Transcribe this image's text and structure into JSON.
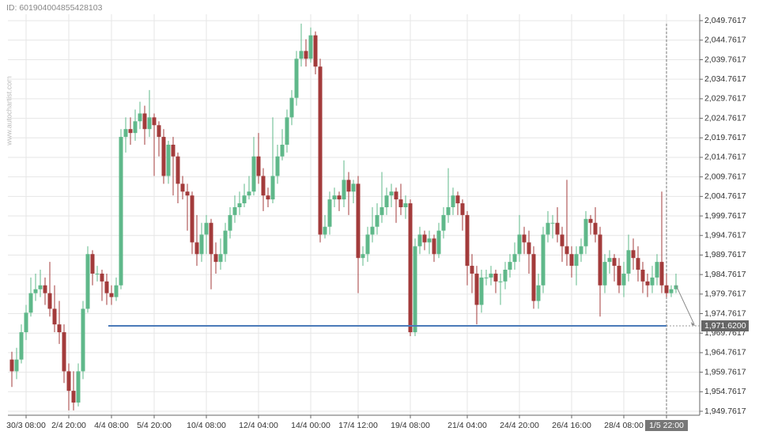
{
  "chart_data": {
    "type": "candlestick",
    "id_text": "ID: 601904004855428103",
    "watermark": "www.autochartist.com",
    "up_color": "#5fb88a",
    "down_color": "#a33b3b",
    "level_color": "#4a7ab8",
    "grid": true,
    "level": {
      "value": 1971.62,
      "label": "1,971.6200"
    },
    "ylim": [
      1948.75,
      2051.4
    ],
    "yticks": [
      {
        "value": 1949.7617,
        "label": "1,949.7617"
      },
      {
        "value": 1954.7617,
        "label": "1,954.7617"
      },
      {
        "value": 1959.7617,
        "label": "1,959.7617"
      },
      {
        "value": 1964.7617,
        "label": "1,964.7617"
      },
      {
        "value": 1969.7617,
        "label": "1,969.7617"
      },
      {
        "value": 1974.7617,
        "label": "1,974.7617"
      },
      {
        "value": 1979.7617,
        "label": "1,979.7617"
      },
      {
        "value": 1984.7617,
        "label": "1,984.7617"
      },
      {
        "value": 1989.7617,
        "label": "1,989.7617"
      },
      {
        "value": 1994.7617,
        "label": "1,994.7617"
      },
      {
        "value": 1999.7617,
        "label": "1,999.7617"
      },
      {
        "value": 2004.7617,
        "label": "2,004.7617"
      },
      {
        "value": 2009.7617,
        "label": "2,009.7617"
      },
      {
        "value": 2014.7617,
        "label": "2,014.7617"
      },
      {
        "value": 2019.7617,
        "label": "2,019.7617"
      },
      {
        "value": 2024.7617,
        "label": "2,024.7617"
      },
      {
        "value": 2029.7617,
        "label": "2,029.7617"
      },
      {
        "value": 2034.7617,
        "label": "2,034.7617"
      },
      {
        "value": 2039.7617,
        "label": "2,039.7617"
      },
      {
        "value": 2044.7617,
        "label": "2,044.7617"
      },
      {
        "value": 2049.7617,
        "label": "2,049.7617"
      }
    ],
    "categories": [
      null,
      null,
      null,
      "30/3 08:00",
      null,
      null,
      null,
      null,
      null,
      null,
      null,
      null,
      "2/4 20:00",
      null,
      null,
      null,
      null,
      null,
      null,
      null,
      null,
      "4/4 08:00",
      null,
      null,
      null,
      null,
      null,
      null,
      null,
      null,
      "5/4 20:00",
      null,
      null,
      null,
      null,
      null,
      null,
      null,
      null,
      null,
      null,
      "10/4 08:00",
      null,
      null,
      null,
      null,
      null,
      null,
      null,
      null,
      null,
      null,
      "12/4 04:00",
      null,
      null,
      null,
      null,
      null,
      null,
      null,
      null,
      null,
      null,
      "14/4 00:00",
      null,
      null,
      null,
      null,
      null,
      null,
      null,
      null,
      null,
      "17/4 12:00",
      null,
      null,
      null,
      null,
      null,
      null,
      null,
      null,
      null,
      null,
      "19/4 08:00",
      null,
      null,
      null,
      null,
      null,
      null,
      null,
      null,
      null,
      null,
      null,
      "21/4 04:00",
      null,
      null,
      null,
      null,
      null,
      null,
      null,
      null,
      null,
      null,
      "24/4 20:00",
      null,
      null,
      null,
      null,
      null,
      null,
      null,
      null,
      null,
      null,
      "26/4 16:00",
      null,
      null,
      null,
      null,
      null,
      null,
      null,
      null,
      null,
      null,
      "28/4 08:00",
      null,
      null,
      null,
      null,
      null,
      null,
      null,
      null,
      "1/5 22:00",
      null,
      null
    ],
    "open": [
      1963,
      1960,
      1963,
      1970,
      1975,
      1980,
      1981,
      1982,
      1980,
      1976,
      1972,
      1970,
      1960,
      1955,
      1952,
      1960,
      1976,
      1990,
      1985,
      1985,
      1983,
      1980,
      1979,
      1982,
      2020,
      2022,
      2021,
      2024,
      2026,
      2022,
      2025,
      2023,
      2020,
      2010,
      2018,
      2015,
      2008,
      2006,
      2005,
      1993,
      1990,
      1995,
      1998,
      1990,
      1988,
      1990,
      1996,
      2000,
      2002,
      2003,
      2005,
      2006,
      2015,
      2010,
      2005,
      2004,
      2010,
      2015,
      2018,
      2025,
      2030,
      2040,
      2042,
      2040,
      2046,
      2038,
      1995,
      1997,
      2004,
      2005,
      2004,
      2009,
      2006,
      2008,
      1989,
      1990,
      1995,
      1997,
      2000,
      2002,
      2005,
      2006,
      2004,
      2002,
      2003,
      1970,
      1992,
      1995,
      1993,
      1994,
      1990,
      1996,
      2000,
      2002,
      2005,
      2003,
      2000,
      1987,
      1985,
      1977,
      1984,
      1984,
      1985,
      1983,
      1983,
      1986,
      1988,
      1990,
      1995,
      1993,
      1990,
      1978,
      1982,
      1995,
      1998,
      1998,
      1995,
      1992,
      1990,
      1987,
      1990,
      1992,
      1999,
      1998,
      1995,
      1982,
      1988,
      1989,
      1987,
      1982,
      1985,
      1991,
      1989,
      1986,
      1983,
      1982,
      1984,
      1988,
      1982,
      1980,
      1981
    ],
    "high": [
      1965,
      1966,
      1972,
      1977,
      1984,
      1985,
      1986,
      1984,
      1988,
      1982,
      1978,
      1972,
      1962,
      1960,
      1962,
      1978,
      1992,
      1991,
      1987,
      1986,
      1985,
      1982,
      1984,
      2022,
      2025,
      2025,
      2027,
      2029,
      2028,
      2032,
      2026,
      2024,
      2022,
      2019,
      2020,
      2016,
      2010,
      2008,
      2006,
      2000,
      1998,
      2000,
      1999,
      1993,
      1994,
      1998,
      2002,
      2005,
      2006,
      2008,
      2010,
      2020,
      2021,
      2012,
      2007,
      2025,
      2018,
      2022,
      2027,
      2032,
      2042,
      2049,
      2045,
      2048,
      2047,
      2040,
      2000,
      2006,
      2007,
      2006,
      2014,
      2011,
      2009,
      2010,
      1992,
      1997,
      2002,
      2003,
      2011,
      2007,
      2008,
      2007,
      2008,
      2005,
      2004,
      1994,
      1997,
      1996,
      1996,
      1995,
      1998,
      2002,
      2012,
      2007,
      2006,
      2004,
      2001,
      1990,
      1987,
      1986,
      1986,
      1987,
      1986,
      1985,
      1988,
      1990,
      1993,
      2000,
      1997,
      1996,
      1992,
      1985,
      1997,
      2001,
      2000,
      2002,
      1997,
      2009,
      1992,
      1992,
      1994,
      2001,
      2000,
      2002,
      1997,
      1990,
      1991,
      1990,
      1989,
      1988,
      1995,
      1994,
      1992,
      1988,
      1985,
      1987,
      1990,
      2006,
      1985,
      1982,
      1985
    ],
    "low": [
      1956,
      1958,
      1962,
      1968,
      1974,
      1978,
      1979,
      1977,
      1974,
      1970,
      1967,
      1957,
      1950,
      1950,
      1951,
      1958,
      1975,
      1982,
      1983,
      1978,
      1977,
      1977,
      1978,
      1981,
      2016,
      2018,
      2019,
      2022,
      2018,
      2020,
      2010,
      2015,
      2008,
      2008,
      2005,
      2003,
      2004,
      1996,
      1990,
      1987,
      1988,
      1990,
      1981,
      1985,
      1986,
      1988,
      1994,
      1998,
      2000,
      2002,
      2004,
      2005,
      2008,
      2001,
      2002,
      2003,
      2008,
      2014,
      2016,
      2023,
      2028,
      2038,
      2038,
      2039,
      2036,
      1993,
      1994,
      1995,
      2002,
      2001,
      2002,
      2000,
      2003,
      1980,
      1987,
      1988,
      1993,
      1995,
      1998,
      2000,
      2002,
      1998,
      2000,
      1999,
      1969,
      1969,
      1990,
      1991,
      1990,
      1988,
      1989,
      1994,
      1998,
      2000,
      2000,
      1996,
      1982,
      1980,
      1972,
      1975,
      1982,
      1982,
      1980,
      1977,
      1981,
      1984,
      1986,
      1988,
      1990,
      1985,
      1976,
      1976,
      1980,
      1993,
      1994,
      1993,
      1988,
      1987,
      1984,
      1982,
      1988,
      1990,
      1995,
      1993,
      1974,
      1980,
      1985,
      1983,
      1980,
      1979,
      1983,
      1986,
      1983,
      1980,
      1979,
      1980,
      1982,
      1980,
      1979,
      1979,
      1980
    ],
    "close": [
      1960,
      1963,
      1970,
      1975,
      1980,
      1981,
      1982,
      1980,
      1976,
      1972,
      1970,
      1960,
      1955,
      1952,
      1960,
      1976,
      1990,
      1985,
      1985,
      1983,
      1980,
      1979,
      1982,
      2020,
      2022,
      2021,
      2024,
      2026,
      2022,
      2025,
      2023,
      2020,
      2010,
      2018,
      2015,
      2008,
      2006,
      2005,
      1993,
      1990,
      1995,
      1998,
      1990,
      1988,
      1990,
      1996,
      2000,
      2002,
      2003,
      2005,
      2006,
      2015,
      2010,
      2005,
      2004,
      2010,
      2015,
      2018,
      2025,
      2030,
      2040,
      2042,
      2040,
      2046,
      2038,
      1995,
      1997,
      2004,
      2005,
      2004,
      2009,
      2006,
      2008,
      1989,
      1990,
      1995,
      1997,
      2000,
      2002,
      2005,
      2006,
      2004,
      2002,
      2003,
      1970,
      1992,
      1995,
      1993,
      1994,
      1990,
      1996,
      2000,
      2002,
      2005,
      2003,
      2000,
      1987,
      1985,
      1977,
      1984,
      1984,
      1985,
      1983,
      1983,
      1986,
      1988,
      1990,
      1995,
      1993,
      1990,
      1978,
      1982,
      1995,
      1998,
      1998,
      1995,
      1992,
      1990,
      1987,
      1990,
      1992,
      1999,
      1998,
      1995,
      1982,
      1988,
      1989,
      1987,
      1982,
      1985,
      1991,
      1989,
      1986,
      1983,
      1982,
      1984,
      1988,
      1982,
      1980,
      1981,
      1982
    ]
  }
}
